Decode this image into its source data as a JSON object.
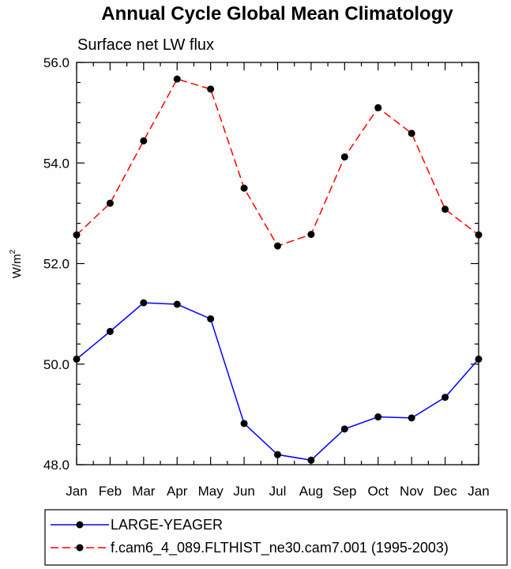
{
  "chart_data": {
    "type": "line",
    "title": "Annual Cycle Global Mean Climatology",
    "subtitle": "Surface net LW flux",
    "ylabel_base": "W/m",
    "ylabel_sup": "2",
    "xlabel": "",
    "categories": [
      "Jan",
      "Feb",
      "Mar",
      "Apr",
      "May",
      "Jun",
      "Jul",
      "Aug",
      "Sep",
      "Oct",
      "Nov",
      "Dec",
      "Jan"
    ],
    "ylim": [
      48.0,
      56.0
    ],
    "yticks": [
      "48.0",
      "50.0",
      "52.0",
      "54.0",
      "56.0"
    ],
    "grid": false,
    "legend_position": "bottom",
    "series": [
      {
        "name": "LARGE-YEAGER",
        "color": "#0000ff",
        "dash": "solid",
        "values": [
          50.1,
          50.65,
          51.22,
          51.19,
          50.9,
          48.82,
          48.2,
          48.09,
          48.71,
          48.95,
          48.93,
          49.34,
          50.1
        ]
      },
      {
        "name": "f.cam6_4_089.FLTHIST_ne30.cam7.001 (1995-2003)",
        "color": "#ff0000",
        "dash": "dashed",
        "values": [
          52.57,
          53.2,
          54.44,
          55.67,
          55.47,
          53.5,
          52.35,
          52.58,
          54.12,
          55.1,
          54.59,
          53.08,
          52.57
        ]
      }
    ]
  }
}
